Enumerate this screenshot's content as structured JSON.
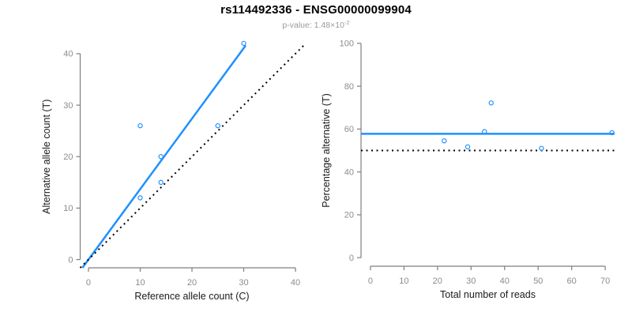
{
  "header": {
    "title": "rs114492336 - ENSG00000099904",
    "pvalue_prefix": "p-value: 1.48×10",
    "pvalue_exponent": "-2"
  },
  "colors": {
    "accent": "#1E90FF",
    "line_black": "#000000",
    "axis": "#7f7f7f",
    "tick_label": "#8c8c8c",
    "axis_title": "#1a1a1a"
  },
  "chart_data": [
    {
      "type": "scatter",
      "panel": "allele-counts",
      "xlabel": "Reference allele count (C)",
      "ylabel": "Alternative allele count (T)",
      "xlim": [
        0,
        40
      ],
      "ylim": [
        0,
        40
      ],
      "xticks": [
        0,
        10,
        20,
        30,
        40
      ],
      "yticks": [
        0,
        10,
        20,
        30,
        40
      ],
      "grid": false,
      "legend": null,
      "points": [
        [
          10,
          26
        ],
        [
          14,
          20
        ],
        [
          14,
          15
        ],
        [
          10,
          12
        ],
        [
          25,
          26
        ],
        [
          30,
          42
        ]
      ],
      "lines": [
        {
          "name": "fitted-ratio-line",
          "kind": "abline",
          "slope": 1.369,
          "intercept": 0,
          "style": "solid",
          "color_key": "accent"
        },
        {
          "name": "identity-line",
          "kind": "abline",
          "slope": 1,
          "intercept": 0,
          "style": "dotted",
          "color_key": "black"
        }
      ]
    },
    {
      "type": "scatter",
      "panel": "percentage-vs-reads",
      "xlabel": "Total number of reads",
      "ylabel": "Percentage alternative (T)",
      "xlim": [
        0,
        70
      ],
      "ylim": [
        0,
        100
      ],
      "xticks": [
        0,
        10,
        20,
        30,
        40,
        50,
        60,
        70
      ],
      "yticks": [
        0,
        20,
        40,
        60,
        80,
        100
      ],
      "grid": false,
      "legend": null,
      "points": [
        [
          22,
          54.5
        ],
        [
          29,
          51.7
        ],
        [
          34,
          58.8
        ],
        [
          36,
          72.2
        ],
        [
          51,
          51.0
        ],
        [
          72,
          58.3
        ]
      ],
      "lines": [
        {
          "name": "mean-percentage-line",
          "kind": "hline",
          "y": 57.8,
          "style": "solid",
          "color_key": "accent"
        },
        {
          "name": "expected-50-line",
          "kind": "hline",
          "y": 50,
          "style": "dotted",
          "color_key": "black"
        }
      ]
    }
  ]
}
